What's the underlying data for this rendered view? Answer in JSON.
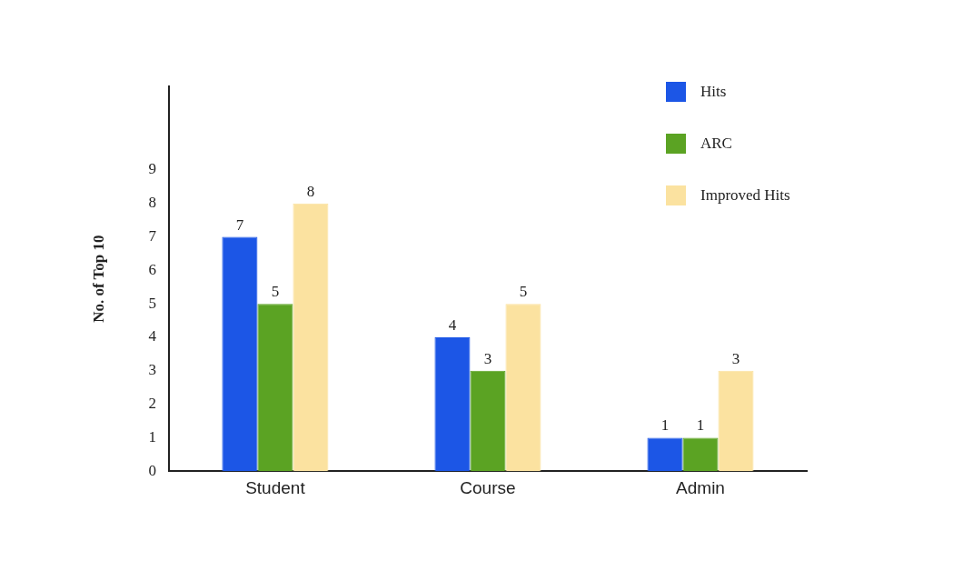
{
  "chart_data": {
    "type": "bar",
    "ylabel": "No. of Top 10",
    "categories": [
      "Student",
      "Course",
      "Admin"
    ],
    "series": [
      {
        "name": "Hits",
        "color": "#1c56e6",
        "values": [
          7,
          4,
          1
        ]
      },
      {
        "name": "ARC",
        "color": "#5ba323",
        "values": [
          5,
          3,
          1
        ]
      },
      {
        "name": "Improved Hits",
        "color": "#fbe2a0",
        "values": [
          8,
          5,
          3
        ]
      }
    ],
    "ylim": [
      0,
      11.5
    ],
    "yticks": [
      0,
      1,
      2,
      3,
      4,
      5,
      6,
      7,
      8,
      9
    ],
    "grid": false,
    "legend": "top right",
    "data_labels": true
  }
}
